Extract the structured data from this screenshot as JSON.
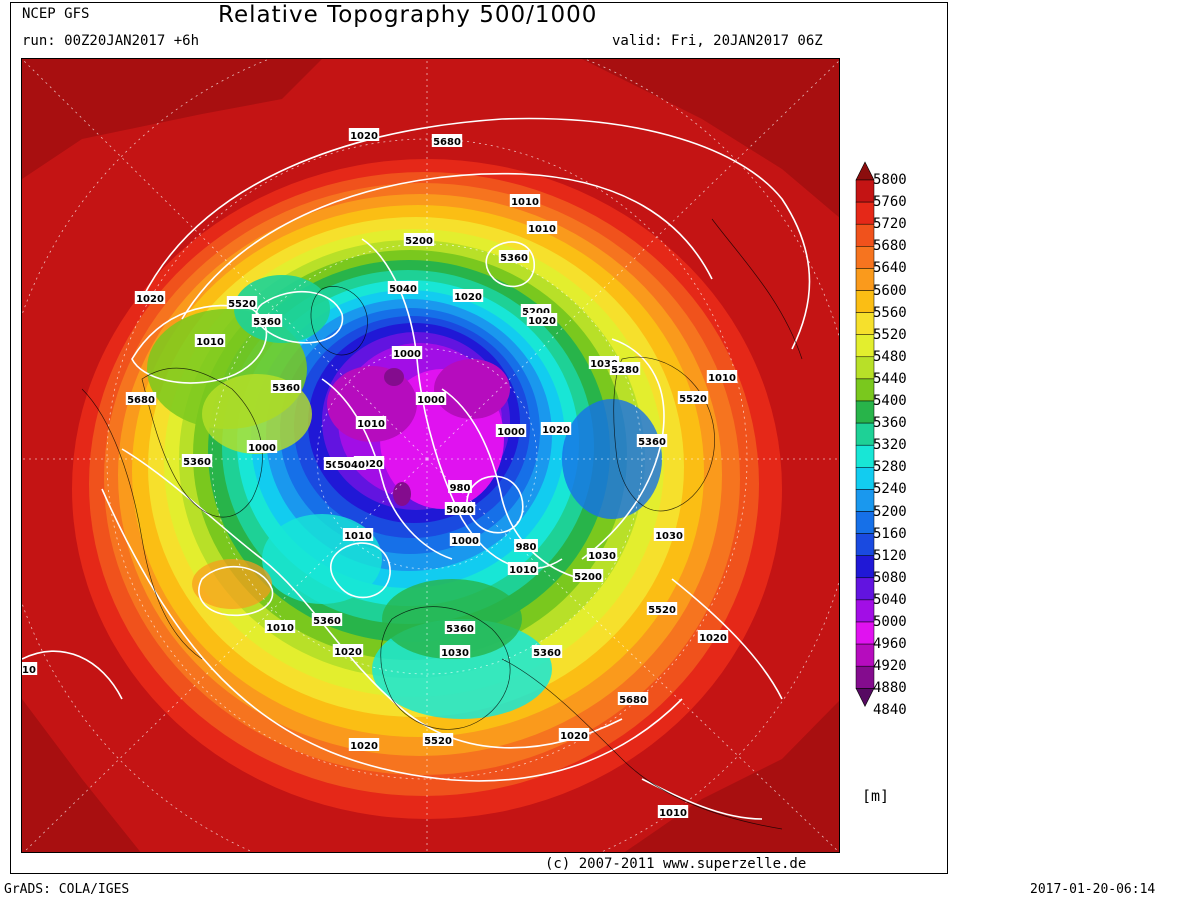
{
  "header": {
    "source": "NCEP GFS",
    "title": "Relative Topography 500/1000",
    "run": "run: 00Z20JAN2017 +6h",
    "valid": "valid: Fri, 20JAN2017 06Z"
  },
  "footer": {
    "copyright": "(c) 2007-2011 www.superzelle.de",
    "software": "GrADS: COLA/IGES",
    "timestamp": "2017-01-20-06:14"
  },
  "legend": {
    "unit": "[m]",
    "levels": [
      "5800",
      "5760",
      "5720",
      "5680",
      "5640",
      "5600",
      "5560",
      "5520",
      "5480",
      "5440",
      "5400",
      "5360",
      "5320",
      "5280",
      "5240",
      "5200",
      "5160",
      "5120",
      "5080",
      "5040",
      "5000",
      "4960",
      "4920",
      "4880",
      "4840"
    ],
    "colors": [
      "#8b0d0d",
      "#c41414",
      "#e52818",
      "#f0521c",
      "#f6741f",
      "#fa9a1c",
      "#fbbe14",
      "#f6e02c",
      "#e3ee2e",
      "#b8e028",
      "#7ac81e",
      "#28b44a",
      "#1ed196",
      "#18e6d6",
      "#12ccf0",
      "#1a98ee",
      "#1670e8",
      "#1a4ae0",
      "#2018d6",
      "#6214e0",
      "#a20ee6",
      "#e012f0",
      "#b60cbe",
      "#840c8e",
      "#560a62"
    ]
  },
  "map": {
    "contour_labels": [
      "1020",
      "5680",
      "5360",
      "1010",
      "5200",
      "1020",
      "5520",
      "5360",
      "5040",
      "1020",
      "5360",
      "1010",
      "1000",
      "1010",
      "1020",
      "5040",
      "5200",
      "1010",
      "5680",
      "5360",
      "1000",
      "1000",
      "1030",
      "1020",
      "5280",
      "5360",
      "1010",
      "5520",
      "5040",
      "1020",
      "1000",
      "980",
      "5040",
      "1000",
      "1030",
      "980",
      "1030",
      "1010",
      "1010",
      "5200",
      "1010",
      "5360",
      "1020",
      "5360",
      "1030",
      "5360",
      "5520",
      "1020",
      "5520",
      "1020",
      "1020",
      "5680",
      "1010",
      "1010"
    ]
  }
}
